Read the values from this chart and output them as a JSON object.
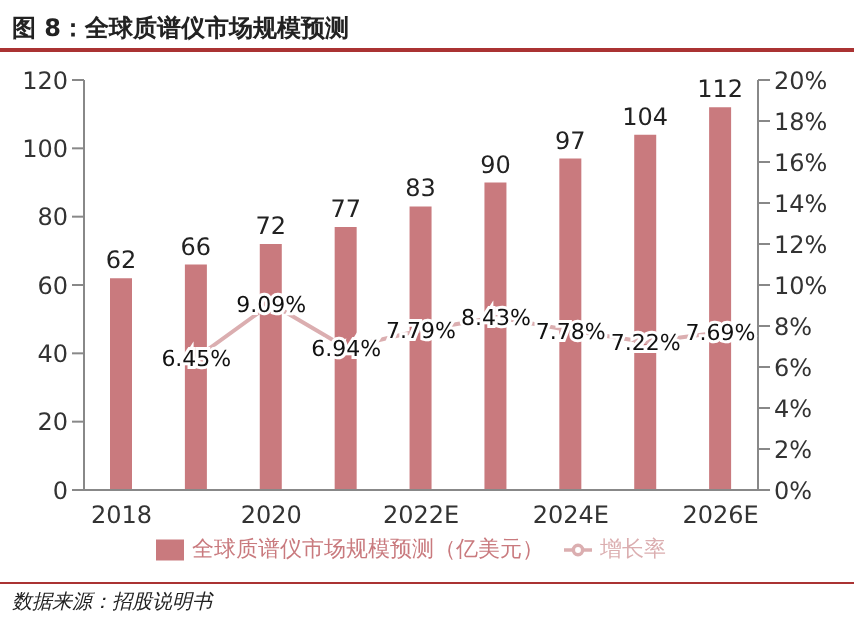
{
  "chart_data": {
    "type": "bar",
    "title": "图 8：全球质谱仪市场规模预测",
    "categories": [
      "2018",
      null,
      "2020",
      null,
      "2022E",
      null,
      "2024E",
      null,
      "2026E"
    ],
    "series": [
      {
        "name": "全球质谱仪市场规模预测（亿美元）",
        "color": "#c97a7e",
        "values": [
          62,
          66,
          72,
          77,
          83,
          90,
          97,
          104,
          112
        ]
      },
      {
        "name": "增长率",
        "type": "line",
        "axis": "y2",
        "color": "#dbaeb0",
        "values": [
          null,
          6.45,
          9.09,
          6.94,
          7.79,
          8.43,
          7.78,
          7.22,
          7.69
        ],
        "value_labels": [
          null,
          "6.45%",
          "9.09%",
          "6.94%",
          "7.79%",
          "8.43%",
          "7.78%",
          "7.22%",
          "7.69%"
        ]
      }
    ],
    "ylim": [
      0,
      120
    ],
    "yticks": [
      0,
      20,
      40,
      60,
      80,
      100,
      120
    ],
    "y2lim": [
      0,
      20
    ],
    "y2ticks": [
      {
        "value": 0,
        "label": "0%"
      },
      {
        "value": 2,
        "label": "2%"
      },
      {
        "value": 4,
        "label": "4%"
      },
      {
        "value": 6,
        "label": "6%"
      },
      {
        "value": 8,
        "label": "8%"
      },
      {
        "value": 10,
        "label": "10%"
      },
      {
        "value": 12,
        "label": "12%"
      },
      {
        "value": 14,
        "label": "14%"
      },
      {
        "value": 16,
        "label": "16%"
      },
      {
        "value": 18,
        "label": "18%"
      },
      {
        "value": 20,
        "label": "20%"
      }
    ],
    "data_labels": true,
    "legend": "bottom",
    "grid": false,
    "marker": "none",
    "annotations": [
      "数据来源：招股说明书"
    ]
  }
}
